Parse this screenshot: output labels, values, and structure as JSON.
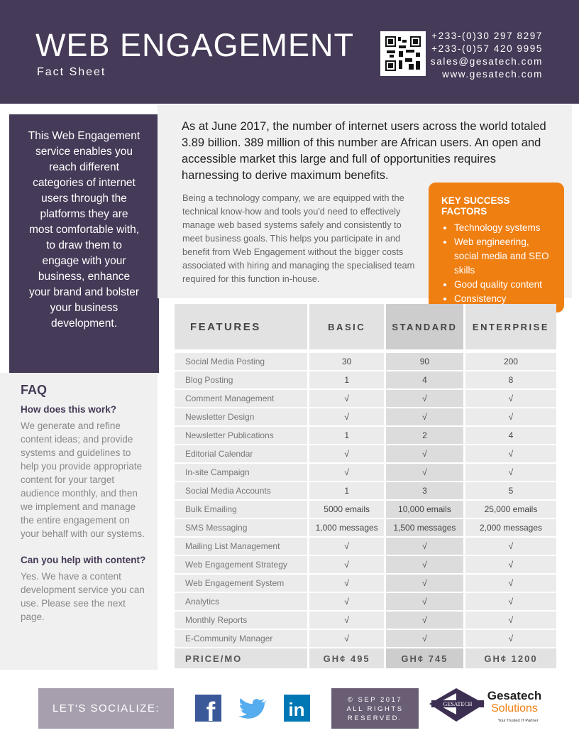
{
  "header": {
    "title": "WEB ENGAGEMENT",
    "subtitle": "Fact Sheet",
    "contacts": [
      "+233-(0)30 297 8297",
      "+233-(0)57 420 9995",
      "sales@gesatech.com",
      "www.gesatech.com"
    ]
  },
  "sidebar": {
    "intro": "This Web Engagement service enables you reach different categories of internet users through the platforms they are most comfortable with, to draw them to engage with your business, enhance your brand and bolster your business development.",
    "faq_title": "FAQ",
    "faq": [
      {
        "question": "How does this work?",
        "answer": "We generate and refine content ideas; and provide systems and guidelines to help you provide appropriate content for your target audience monthly, and then we implement and manage the entire engagement on your behalf with our systems."
      },
      {
        "question": "Can you help with content?",
        "answer": "Yes. We have a content development service you can use. Please see the next page."
      }
    ]
  },
  "main": {
    "lead": "As at June 2017, the number of internet users across the world totaled 3.89 billion. 389 million of this number are African users. An open and accessible market this large and full of opportunities requires harnessing to derive maximum benefits.",
    "body": "Being a technology company, we are equipped with the technical know-how and tools you'd need to effectively manage web based systems safely and consistently to meet business goals. This helps you participate in and benefit from Web Engagement without the bigger costs associated with hiring and managing the specialised team required for this function in-house.",
    "key_factors": {
      "title": "KEY SUCCESS FACTORS",
      "items": [
        "Technology systems",
        "Web engineering, social media and SEO skills",
        "Good quality content",
        "Consistency"
      ]
    }
  },
  "table": {
    "headers": [
      "FEATURES",
      "BASIC",
      "STANDARD",
      "ENTERPRISE"
    ],
    "rows": [
      [
        "Social Media Posting",
        "30",
        "90",
        "200"
      ],
      [
        "Blog Posting",
        "1",
        "4",
        "8"
      ],
      [
        "Comment Management",
        "√",
        "√",
        "√"
      ],
      [
        "Newsletter Design",
        "√",
        "√",
        "√"
      ],
      [
        "Newsletter Publications",
        "1",
        "2",
        "4"
      ],
      [
        "Editorial Calendar",
        "√",
        "√",
        "√"
      ],
      [
        "In-site Campaign",
        "√",
        "√",
        "√"
      ],
      [
        "Social Media Accounts",
        "1",
        "3",
        "5"
      ],
      [
        "Bulk Emailing",
        "5000 emails",
        "10,000 emails",
        "25,000 emails"
      ],
      [
        "SMS Messaging",
        "1,000 messages",
        "1,500 messages",
        "2,000 messages"
      ],
      [
        "Mailing List Management",
        "√",
        "√",
        "√"
      ],
      [
        "Web Engagement Strategy",
        "√",
        "√",
        "√"
      ],
      [
        "Web Engagement System",
        "√",
        "√",
        "√"
      ],
      [
        "Analytics",
        "√",
        "√",
        "√"
      ],
      [
        "Monthly Reports",
        "√",
        "√",
        "√"
      ],
      [
        "E-Community Manager",
        "√",
        "√",
        "√"
      ]
    ],
    "price": [
      "PRICE/MO",
      "GH¢ 495",
      "GH¢ 745",
      "GH¢ 1200"
    ]
  },
  "footer": {
    "socialize": "LET'S SOCIALIZE:",
    "facebook": "f",
    "linkedin": "in",
    "copyright": "© SEP 2017 ALL RIGHTS RESERVED.",
    "logo_badge": "GESATECH",
    "logo_name": "Gesatech",
    "logo_sub": "Solutions",
    "tagline": "Your Trusted IT Partner"
  }
}
